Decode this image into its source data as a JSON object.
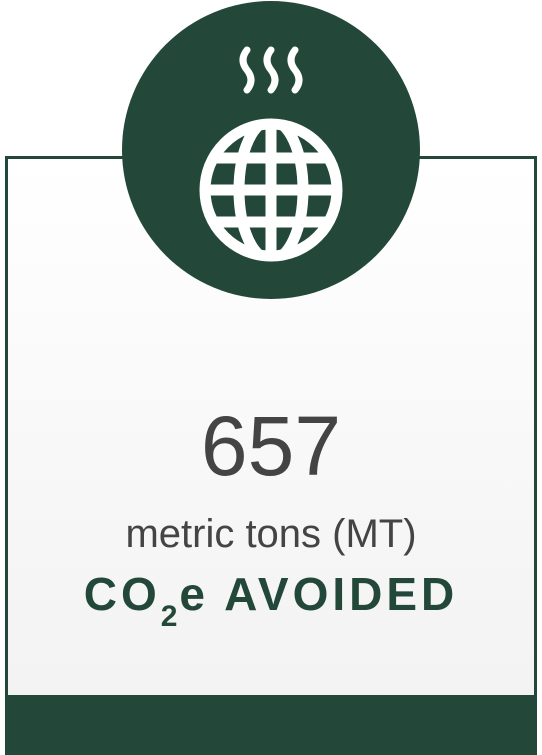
{
  "stat": {
    "value": 657,
    "unit": "metric tons (MT)",
    "label_prefix": "CO",
    "label_subscript": "2",
    "label_suffix": "e AVOIDED"
  }
}
